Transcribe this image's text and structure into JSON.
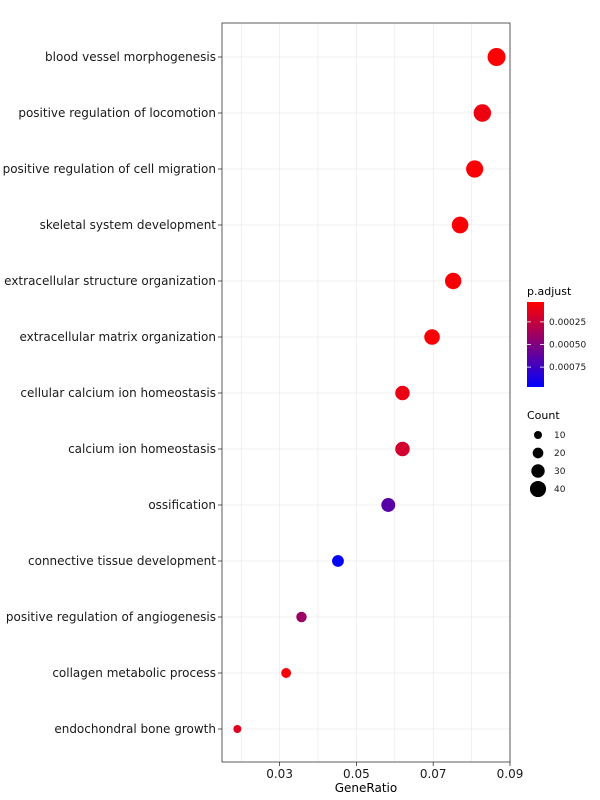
{
  "chart_data": {
    "type": "scatter",
    "title": "",
    "xlabel": "GeneRatio",
    "ylabel": "",
    "xlim": [
      0.015,
      0.09
    ],
    "xticks": [
      0.03,
      0.05,
      0.07,
      0.09
    ],
    "xtick_labels": [
      "0.03",
      "0.05",
      "0.07",
      "0.09"
    ],
    "grid": true,
    "legend_placement": "right",
    "categories": [
      "blood vessel morphogenesis",
      "positive regulation of locomotion",
      "positive regulation of cell migration",
      "skeletal system development",
      "extracellular structure organization",
      "extracellular matrix organization",
      "cellular calcium ion homeostasis",
      "calcium ion homeostasis",
      "ossification",
      "connective tissue development",
      "positive regulation of angiogenesis",
      "collagen metabolic process",
      "endochondral bone growth"
    ],
    "points": [
      {
        "term": "blood vessel morphogenesis",
        "gene_ratio": 0.0865,
        "count": 47,
        "p_adjust": 4e-05
      },
      {
        "term": "positive regulation of locomotion",
        "gene_ratio": 0.0828,
        "count": 45,
        "p_adjust": 9e-05
      },
      {
        "term": "positive regulation of cell migration",
        "gene_ratio": 0.0808,
        "count": 44,
        "p_adjust": 5e-05
      },
      {
        "term": "skeletal system development",
        "gene_ratio": 0.077,
        "count": 42,
        "p_adjust": 5e-05
      },
      {
        "term": "extracellular structure organization",
        "gene_ratio": 0.0752,
        "count": 41,
        "p_adjust": 5e-05
      },
      {
        "term": "extracellular matrix organization",
        "gene_ratio": 0.0697,
        "count": 38,
        "p_adjust": 5e-05
      },
      {
        "term": "cellular calcium ion homeostasis",
        "gene_ratio": 0.062,
        "count": 34,
        "p_adjust": 0.0001
      },
      {
        "term": "calcium ion homeostasis",
        "gene_ratio": 0.062,
        "count": 34,
        "p_adjust": 0.0002
      },
      {
        "term": "ossification",
        "gene_ratio": 0.0583,
        "count": 32,
        "p_adjust": 0.00065
      },
      {
        "term": "connective tissue development",
        "gene_ratio": 0.0452,
        "count": 24,
        "p_adjust": 0.00095
      },
      {
        "term": "positive regulation of angiogenesis",
        "gene_ratio": 0.0357,
        "count": 19,
        "p_adjust": 0.0004
      },
      {
        "term": "collagen metabolic process",
        "gene_ratio": 0.0317,
        "count": 17,
        "p_adjust": 6e-05
      },
      {
        "term": "endochondral bone growth",
        "gene_ratio": 0.019,
        "count": 10,
        "p_adjust": 0.00015
      }
    ],
    "color_legend": {
      "title": "p.adjust",
      "range": [
        3e-05,
        0.00097
      ],
      "low_color": "#ff0000",
      "high_color": "#0000ff",
      "ticks": [
        0.00025,
        0.0005,
        0.00075
      ],
      "tick_labels": [
        "0.00025",
        "0.00050",
        "0.00075"
      ]
    },
    "size_legend": {
      "title": "Count",
      "size_range": [
        10,
        47
      ],
      "values": [
        10,
        20,
        30,
        40
      ],
      "labels": [
        "10",
        "20",
        "30",
        "40"
      ]
    }
  }
}
